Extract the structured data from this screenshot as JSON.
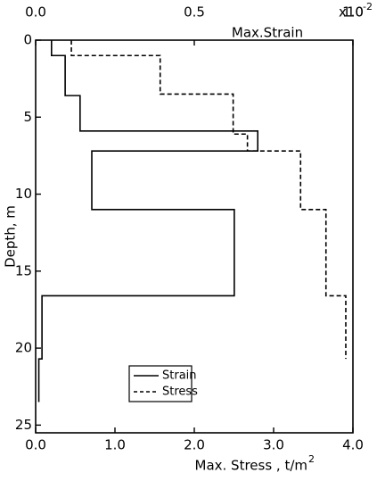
{
  "chart_data": {
    "type": "step-profile",
    "ylabel": "Depth, m",
    "xlabel": "Max. Stress , t/m",
    "xlabel_sup": "2",
    "x2label": "Max.Strain",
    "x2_multiplier": "x10",
    "x2_multiplier_sup": "-2",
    "ylim": [
      0,
      25.5
    ],
    "yticks": [
      0,
      5,
      10,
      15,
      20,
      25
    ],
    "xlim": [
      0,
      4.0
    ],
    "xticks": [
      {
        "value": 0,
        "label": "0.0"
      },
      {
        "value": 1,
        "label": "1.0"
      },
      {
        "value": 2,
        "label": "2.0"
      },
      {
        "value": 3,
        "label": "3.0"
      },
      {
        "value": 4,
        "label": "4.0"
      }
    ],
    "x2lim": [
      0,
      1.0
    ],
    "x2ticks": [
      {
        "value": 0,
        "label": "0.0"
      },
      0.5,
      {
        "value": 1,
        "label": "1.0"
      }
    ],
    "legend": "lower-center",
    "series": [
      {
        "name": "Strain",
        "axis": "x2",
        "style": "solid",
        "color": "#000000",
        "depths": [
          0,
          1.0,
          1.0,
          3.6,
          3.6,
          5.9,
          5.9,
          7.2,
          7.2,
          11.0,
          11.0,
          16.6,
          16.6,
          20.7,
          20.7,
          23.5
        ],
        "values": [
          0.05,
          0.05,
          0.093,
          0.093,
          0.14,
          0.14,
          0.7,
          0.7,
          0.177,
          0.177,
          0.626,
          0.626,
          0.02,
          0.02,
          0.01,
          0.01
        ]
      },
      {
        "name": "Stress",
        "axis": "x",
        "style": "dashed",
        "color": "#000000",
        "depths": [
          0,
          1.0,
          1.0,
          3.5,
          3.5,
          6.1,
          6.1,
          7.2,
          7.2,
          11.0,
          11.0,
          16.6,
          16.6,
          20.7
        ],
        "values": [
          0.45,
          0.45,
          1.57,
          1.57,
          2.49,
          2.49,
          2.67,
          2.67,
          3.34,
          3.34,
          3.66,
          3.66,
          3.91,
          3.91
        ]
      }
    ]
  }
}
